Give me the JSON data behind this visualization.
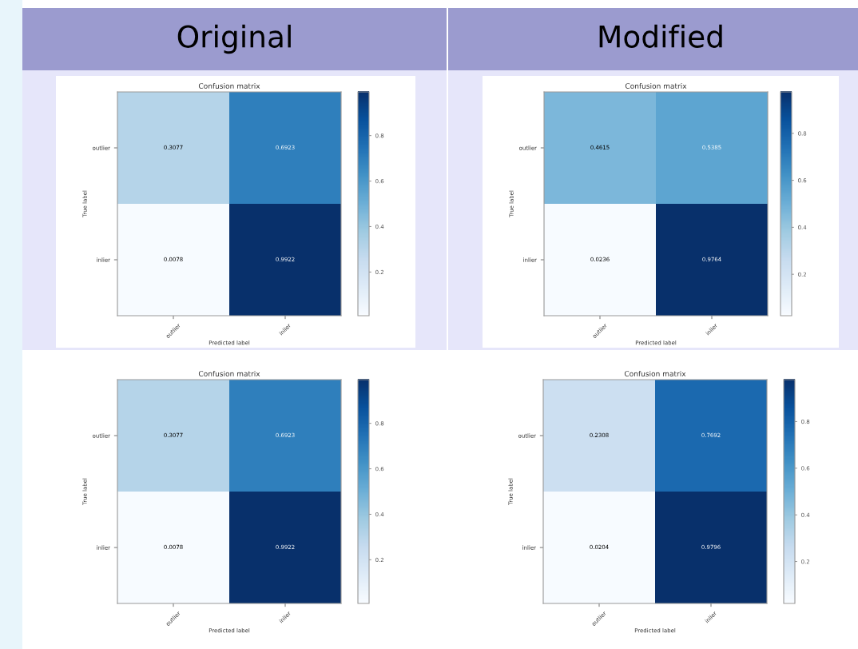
{
  "chart_data": [
    {
      "type": "heatmap",
      "title": "Confusion matrix",
      "xlabel": "Predicted label",
      "ylabel": "True label",
      "annotations": [
        "Original"
      ],
      "categories": [
        "outlier",
        "inlier"
      ],
      "y_categories": [
        "outlier",
        "inlier"
      ],
      "cells": [
        [
          0.3077,
          0.6923
        ],
        [
          0.0078,
          0.9922
        ]
      ],
      "clim": [
        0.0078,
        0.9922
      ],
      "cticks": [
        0.2,
        0.4,
        0.6,
        0.8
      ],
      "data_labels": true
    },
    {
      "type": "heatmap",
      "title": "Confusion matrix",
      "xlabel": "Predicted label",
      "ylabel": "True label",
      "annotations": [
        "Modified"
      ],
      "categories": [
        "outlier",
        "inlier"
      ],
      "y_categories": [
        "outlier",
        "inlier"
      ],
      "cells": [
        [
          0.4615,
          0.5385
        ],
        [
          0.0236,
          0.9764
        ]
      ],
      "clim": [
        0.0236,
        0.9764
      ],
      "cticks": [
        0.2,
        0.4,
        0.6,
        0.8
      ],
      "data_labels": true
    },
    {
      "type": "heatmap",
      "title": "Confusion matrix",
      "xlabel": "Predicted label",
      "ylabel": "True label",
      "categories": [
        "outlier",
        "inlier"
      ],
      "y_categories": [
        "outlier",
        "inlier"
      ],
      "cells": [
        [
          0.3077,
          0.6923
        ],
        [
          0.0078,
          0.9922
        ]
      ],
      "clim": [
        0.0078,
        0.9922
      ],
      "cticks": [
        0.2,
        0.4,
        0.6,
        0.8
      ],
      "data_labels": true
    },
    {
      "type": "heatmap",
      "title": "Confusion matrix",
      "xlabel": "Predicted label",
      "ylabel": "True label",
      "categories": [
        "outlier",
        "inlier"
      ],
      "y_categories": [
        "outlier",
        "inlier"
      ],
      "cells": [
        [
          0.2308,
          0.7692
        ],
        [
          0.0204,
          0.9796
        ]
      ],
      "clim": [
        0.0204,
        0.9796
      ],
      "cticks": [
        0.2,
        0.4,
        0.6,
        0.8
      ],
      "data_labels": true
    }
  ]
}
